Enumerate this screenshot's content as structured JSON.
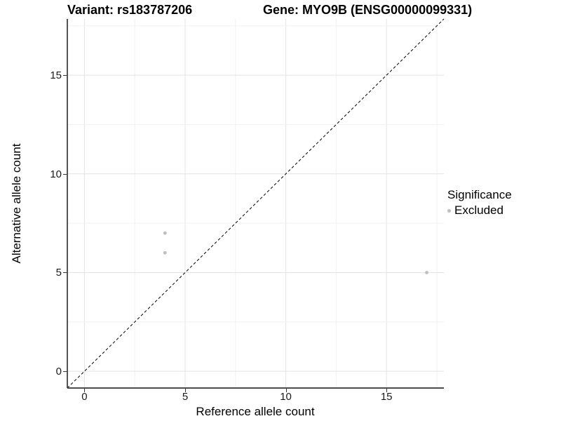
{
  "chart_data": {
    "type": "scatter",
    "titles": {
      "variant": "Variant: rs183787206",
      "gene": "Gene: MYO9B (ENSG00000099331)"
    },
    "xlabel": "Reference allele count",
    "ylabel": "Alternative allele count",
    "xlim": [
      -0.85,
      17.85
    ],
    "ylim": [
      -0.85,
      17.85
    ],
    "x_ticks": [
      0,
      5,
      10,
      15
    ],
    "y_ticks": [
      0,
      5,
      10,
      15
    ],
    "minor_step": 2.5,
    "grid": true,
    "points": [
      {
        "x": 4,
        "y": 7,
        "significance": "Excluded"
      },
      {
        "x": 4,
        "y": 6,
        "significance": "Excluded"
      },
      {
        "x": 17,
        "y": 5,
        "significance": "Excluded"
      }
    ],
    "point_color": "#bebebe",
    "point_radius": 2.4,
    "identity_line": {
      "slope": 1,
      "intercept": 0,
      "style": "dashed",
      "color": "#000000"
    },
    "legend": {
      "title": "Significance",
      "position": "right",
      "items": [
        {
          "label": "Excluded",
          "color": "#bebebe"
        }
      ]
    },
    "colors": {
      "grid_major": "#e4e4e4",
      "grid_minor": "#f1f1f1",
      "y_axis_line": "#1a1a1a",
      "x_axis_line": "#4d4d4d",
      "tick": "#333333"
    }
  }
}
